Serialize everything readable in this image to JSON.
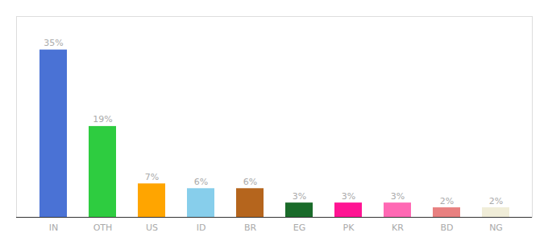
{
  "chart_data": {
    "type": "bar",
    "categories": [
      "IN",
      "OTH",
      "US",
      "ID",
      "BR",
      "EG",
      "PK",
      "KR",
      "BD",
      "NG"
    ],
    "values": [
      35,
      19,
      7,
      6,
      6,
      3,
      3,
      3,
      2,
      2
    ],
    "value_labels": [
      "35%",
      "19%",
      "7%",
      "6%",
      "6%",
      "3%",
      "3%",
      "3%",
      "2%",
      "2%"
    ],
    "colors": [
      "#4A72D5",
      "#2ECC40",
      "#FFA500",
      "#87CEEB",
      "#B5651D",
      "#1A6B2A",
      "#FF1493",
      "#FF69B4",
      "#E88080",
      "#F0EDD8"
    ],
    "ylim": [
      0,
      42
    ],
    "data_labels": true,
    "tick_labels": "x",
    "grid": false
  }
}
